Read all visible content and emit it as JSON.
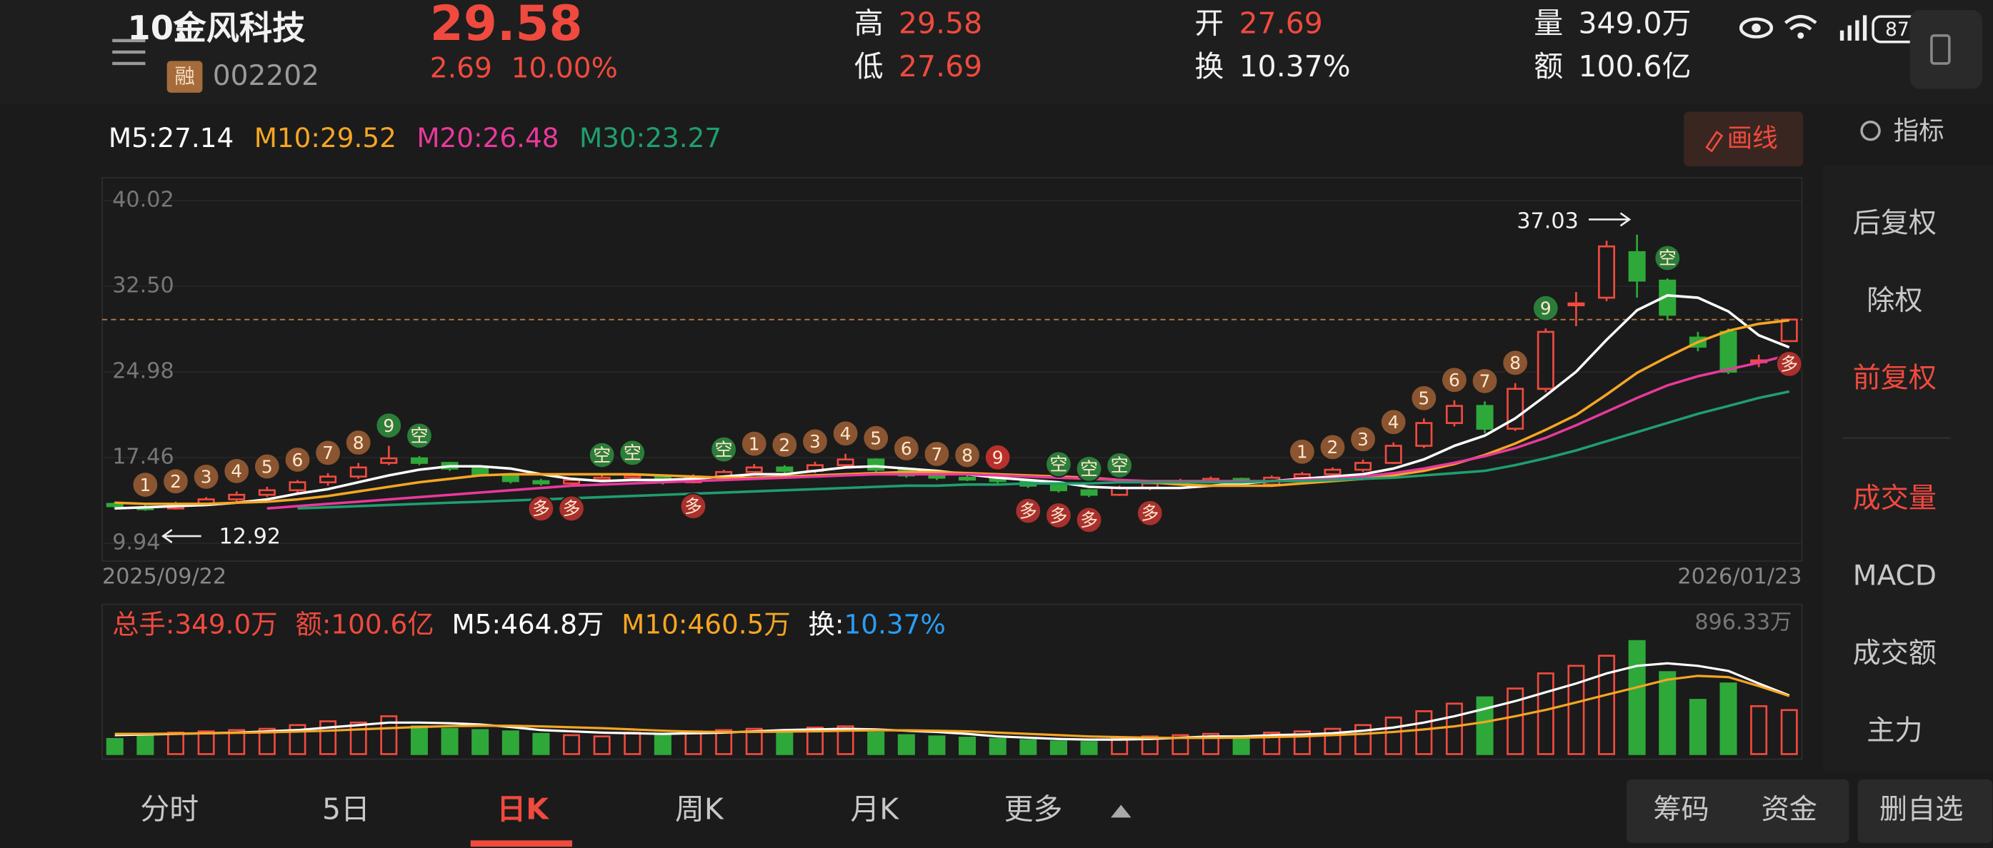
{
  "status_bar": {
    "time": "10:",
    "battery": "87"
  },
  "header": {
    "name": "金风科技",
    "badge": "融",
    "code": "002202",
    "price": "29.58",
    "change": "2.69",
    "change_pct": "10.00%",
    "stats": [
      {
        "label": "高",
        "value": "29.58"
      },
      {
        "label": "低",
        "value": "27.69"
      },
      {
        "label": "开",
        "value": "27.69"
      },
      {
        "label": "换",
        "value": "10.37%"
      },
      {
        "label": "量",
        "value": "349.0万"
      },
      {
        "label": "额",
        "value": "100.6亿"
      }
    ]
  },
  "draw_button": "画线",
  "indicator_button": "指标",
  "side_menu": [
    "后复权",
    "除权",
    "前复权",
    "成交量",
    "MACD",
    "成交额",
    "主力"
  ],
  "tabs": [
    "分时",
    "5日",
    "日K",
    "周K",
    "月K",
    "更多"
  ],
  "actions": [
    "筹码",
    "资金",
    "删自选"
  ],
  "chart_data": [
    {
      "type": "candlestick",
      "up_color": "#f04a3e",
      "down_color": "#2fa83a",
      "grid": true,
      "ylim": [
        8.38,
        42.03
      ],
      "yticks": [
        40.02,
        {
          "value": 32.5,
          "label": "32.50"
        },
        24.98,
        17.46,
        9.94
      ],
      "x_labels": [
        "2025/09/22",
        "2026/01/23"
      ],
      "price_line": 29.58,
      "price_line_color": "#b97a45",
      "max_label": 37.03,
      "min_label": 12.92,
      "open": [
        13.4,
        13.1,
        13.0,
        13.4,
        13.8,
        14.2,
        14.6,
        15.3,
        15.8,
        17.0,
        17.4,
        17.0,
        16.5,
        16.0,
        15.4,
        15.2,
        15.5,
        15.7,
        15.9,
        15.3,
        15.8,
        16.2,
        16.6,
        16.3,
        16.8,
        17.3,
        16.4,
        15.9,
        15.7,
        15.6,
        15.4,
        15.0,
        14.6,
        14.2,
        14.8,
        15.2,
        15.4,
        15.6,
        15.1,
        15.7,
        16.0,
        16.4,
        17.0,
        18.5,
        20.5,
        22.0,
        20.0,
        23.5,
        31.0,
        31.5,
        35.5,
        33.0,
        28.0,
        28.5,
        26.0,
        27.69
      ],
      "close": [
        13.2,
        13.0,
        13.4,
        13.8,
        14.2,
        14.6,
        15.3,
        15.8,
        16.6,
        17.4,
        17.0,
        16.5,
        16.0,
        15.4,
        15.2,
        15.5,
        15.7,
        15.9,
        15.3,
        15.8,
        16.2,
        16.6,
        16.3,
        16.8,
        17.3,
        16.4,
        15.9,
        15.7,
        15.6,
        15.4,
        15.0,
        14.6,
        14.2,
        14.8,
        15.2,
        15.4,
        15.6,
        15.1,
        15.7,
        16.0,
        16.4,
        17.0,
        18.5,
        20.5,
        22.0,
        20.0,
        23.5,
        28.5,
        31.0,
        36.0,
        33.0,
        30.0,
        27.2,
        25.0,
        26.0,
        29.58
      ],
      "high": [
        13.6,
        13.3,
        13.6,
        14.0,
        14.5,
        14.9,
        15.5,
        16.1,
        17.0,
        18.5,
        17.6,
        17.1,
        16.6,
        16.1,
        15.6,
        15.7,
        15.9,
        16.1,
        16.0,
        16.0,
        16.4,
        16.9,
        16.8,
        17.1,
        17.8,
        17.4,
        16.5,
        16.0,
        15.9,
        15.7,
        15.5,
        15.1,
        14.7,
        15.0,
        15.4,
        15.6,
        15.8,
        15.7,
        15.9,
        16.2,
        16.6,
        17.3,
        18.8,
        20.9,
        22.5,
        22.4,
        24.0,
        28.8,
        32.0,
        36.5,
        37.03,
        33.2,
        28.5,
        28.8,
        26.5,
        29.58
      ],
      "low": [
        12.92,
        12.8,
        12.9,
        13.2,
        13.6,
        14.0,
        14.4,
        15.0,
        15.6,
        16.8,
        16.8,
        16.3,
        15.8,
        15.2,
        15.0,
        15.0,
        15.3,
        15.5,
        15.1,
        15.2,
        15.6,
        16.0,
        16.1,
        16.1,
        16.6,
        16.2,
        15.7,
        15.5,
        15.4,
        15.2,
        14.8,
        14.4,
        14.0,
        14.1,
        14.6,
        15.0,
        15.2,
        14.9,
        15.0,
        15.5,
        15.8,
        16.2,
        16.9,
        18.3,
        20.2,
        19.6,
        19.8,
        23.2,
        29.0,
        31.2,
        31.5,
        29.5,
        26.8,
        24.8,
        25.4,
        27.69
      ],
      "series": [
        {
          "name": "M5:27.14",
          "color": "#ffffff",
          "values": [
            13.0,
            13.1,
            13.2,
            13.3,
            13.5,
            13.8,
            14.3,
            14.7,
            15.3,
            15.9,
            16.4,
            16.7,
            16.7,
            16.5,
            16.0,
            15.6,
            15.4,
            15.5,
            15.5,
            15.6,
            15.8,
            16.0,
            16.0,
            16.3,
            16.6,
            16.7,
            16.5,
            16.3,
            16.0,
            15.7,
            15.5,
            15.3,
            14.9,
            14.8,
            14.8,
            14.8,
            15.0,
            15.2,
            15.4,
            15.6,
            15.8,
            16.0,
            16.5,
            17.3,
            18.5,
            19.4,
            20.9,
            22.9,
            25.0,
            27.8,
            30.4,
            31.7,
            31.5,
            30.3,
            28.2,
            27.14
          ]
        },
        {
          "name": "M10:29.52",
          "color": "#f5a623",
          "values": [
            13.5,
            13.4,
            13.4,
            13.4,
            13.5,
            13.6,
            13.8,
            14.1,
            14.5,
            14.9,
            15.3,
            15.6,
            15.9,
            16.0,
            16.0,
            16.0,
            16.0,
            16.0,
            15.9,
            15.8,
            15.7,
            15.7,
            15.8,
            15.9,
            16.0,
            16.1,
            16.2,
            16.2,
            16.1,
            16.0,
            15.9,
            15.8,
            15.7,
            15.5,
            15.3,
            15.1,
            15.0,
            15.0,
            15.0,
            15.2,
            15.4,
            15.6,
            15.9,
            16.3,
            16.9,
            17.7,
            18.7,
            19.9,
            21.2,
            23.0,
            24.9,
            26.3,
            27.6,
            28.6,
            29.2,
            29.52
          ]
        },
        {
          "name": "M20:26.48",
          "color": "#e8399c",
          "values": [
            null,
            null,
            null,
            null,
            null,
            13.0,
            13.2,
            13.4,
            13.6,
            13.8,
            14.0,
            14.2,
            14.4,
            14.6,
            14.8,
            15.0,
            15.1,
            15.2,
            15.3,
            15.4,
            15.5,
            15.6,
            15.7,
            15.8,
            15.9,
            16.0,
            16.0,
            16.0,
            16.0,
            15.9,
            15.8,
            15.7,
            15.6,
            15.5,
            15.4,
            15.4,
            15.4,
            15.4,
            15.4,
            15.5,
            15.6,
            15.8,
            16.1,
            16.5,
            17.0,
            17.6,
            18.3,
            19.2,
            20.3,
            21.5,
            22.7,
            23.8,
            24.6,
            25.2,
            25.8,
            26.48
          ]
        },
        {
          "name": "M30:23.27",
          "color": "#1f9e6e",
          "values": [
            null,
            null,
            null,
            null,
            null,
            null,
            13.0,
            13.1,
            13.2,
            13.3,
            13.4,
            13.5,
            13.6,
            13.7,
            13.8,
            13.9,
            14.0,
            14.1,
            14.2,
            14.3,
            14.4,
            14.5,
            14.6,
            14.7,
            14.8,
            14.9,
            15.0,
            15.0,
            15.1,
            15.1,
            15.2,
            15.2,
            15.2,
            15.3,
            15.3,
            15.3,
            15.3,
            15.3,
            15.4,
            15.4,
            15.5,
            15.6,
            15.7,
            15.9,
            16.1,
            16.3,
            16.8,
            17.4,
            18.1,
            18.9,
            19.7,
            20.5,
            21.3,
            22.0,
            22.7,
            23.27
          ]
        }
      ],
      "markers": [
        {
          "text": "1",
          "index": 1,
          "color": "#8a5530",
          "position": "above"
        },
        {
          "text": "2",
          "index": 2,
          "color": "#8a5530",
          "position": "above"
        },
        {
          "text": "3",
          "index": 3,
          "color": "#8a5530",
          "position": "above"
        },
        {
          "text": "4",
          "index": 4,
          "color": "#8a5530",
          "position": "above"
        },
        {
          "text": "5",
          "index": 5,
          "color": "#8a5530",
          "position": "above"
        },
        {
          "text": "6",
          "index": 6,
          "color": "#8a5530",
          "position": "above"
        },
        {
          "text": "7",
          "index": 7,
          "color": "#8a5530",
          "position": "above"
        },
        {
          "text": "8",
          "index": 8,
          "color": "#8a5530",
          "position": "above"
        },
        {
          "text": "9",
          "index": 9,
          "color": "#2b7d39",
          "position": "above"
        },
        {
          "text": "空",
          "index": 10,
          "color": "#2b7d39",
          "position": "above"
        },
        {
          "text": "多",
          "index": 14,
          "color": "#a8302d",
          "position": "below"
        },
        {
          "text": "多",
          "index": 15,
          "color": "#a8302d",
          "position": "below"
        },
        {
          "text": "空",
          "index": 16,
          "color": "#2b7d39",
          "position": "above"
        },
        {
          "text": "空",
          "index": 17,
          "color": "#2b7d39",
          "position": "above"
        },
        {
          "text": "多",
          "index": 19,
          "color": "#a8302d",
          "position": "below"
        },
        {
          "text": "空",
          "index": 20,
          "color": "#2b7d39",
          "position": "above"
        },
        {
          "text": "1",
          "index": 21,
          "color": "#8a5530",
          "position": "above"
        },
        {
          "text": "2",
          "index": 22,
          "color": "#8a5530",
          "position": "above"
        },
        {
          "text": "3",
          "index": 23,
          "color": "#8a5530",
          "position": "above"
        },
        {
          "text": "4",
          "index": 24,
          "color": "#8a5530",
          "position": "above"
        },
        {
          "text": "5",
          "index": 25,
          "color": "#8a5530",
          "position": "above"
        },
        {
          "text": "6",
          "index": 26,
          "color": "#8a5530",
          "position": "above"
        },
        {
          "text": "7",
          "index": 27,
          "color": "#8a5530",
          "position": "above"
        },
        {
          "text": "8",
          "index": 28,
          "color": "#8a5530",
          "position": "above"
        },
        {
          "text": "9",
          "index": 29,
          "color": "#b8302c",
          "position": "above"
        },
        {
          "text": "多",
          "index": 30,
          "color": "#a8302d",
          "position": "below"
        },
        {
          "text": "空",
          "index": 31,
          "color": "#2b7d39",
          "position": "above"
        },
        {
          "text": "多",
          "index": 31,
          "color": "#a8302d",
          "position": "below"
        },
        {
          "text": "空",
          "index": 32,
          "color": "#2b7d39",
          "position": "above"
        },
        {
          "text": "多",
          "index": 32,
          "color": "#a8302d",
          "position": "below"
        },
        {
          "text": "空",
          "index": 33,
          "color": "#2b7d39",
          "position": "above"
        },
        {
          "text": "多",
          "index": 34,
          "color": "#a8302d",
          "position": "below"
        },
        {
          "text": "1",
          "index": 39,
          "color": "#8a5530",
          "position": "above"
        },
        {
          "text": "2",
          "index": 40,
          "color": "#8a5530",
          "position": "above"
        },
        {
          "text": "3",
          "index": 41,
          "color": "#8a5530",
          "position": "above"
        },
        {
          "text": "4",
          "index": 42,
          "color": "#8a5530",
          "position": "above"
        },
        {
          "text": "5",
          "index": 43,
          "color": "#8a5530",
          "position": "above"
        },
        {
          "text": "6",
          "index": 44,
          "color": "#8a5530",
          "position": "above"
        },
        {
          "text": "7",
          "index": 45,
          "color": "#8a5530",
          "position": "above"
        },
        {
          "text": "8",
          "index": 46,
          "color": "#8a5530",
          "position": "above"
        },
        {
          "text": "9",
          "index": 47,
          "color": "#2b7d39",
          "position": "above"
        },
        {
          "text": "空",
          "index": 51,
          "color": "#2b7d39",
          "position": "above"
        },
        {
          "text": "多",
          "index": 55,
          "color": "#a8302d",
          "position": "below"
        }
      ]
    },
    {
      "type": "volume",
      "ylim": [
        0,
        896.33
      ],
      "yticks": [
        {
          "value": 896.33,
          "label": "896.33万"
        }
      ],
      "grid": false,
      "values": [
        120,
        150,
        170,
        180,
        190,
        200,
        230,
        260,
        250,
        300,
        220,
        200,
        190,
        180,
        160,
        150,
        140,
        170,
        160,
        180,
        190,
        200,
        180,
        210,
        220,
        170,
        150,
        140,
        130,
        120,
        110,
        100,
        95,
        130,
        140,
        150,
        160,
        120,
        170,
        180,
        200,
        230,
        290,
        340,
        400,
        450,
        520,
        640,
        700,
        780,
        896.33,
        650,
        430,
        560,
        380,
        349.0
      ],
      "info": [
        {
          "text": "总手:349.0万",
          "color": "#f04a3e"
        },
        {
          "text": "额:100.6亿",
          "color": "#f04a3e"
        }
      ],
      "series": [
        {
          "name": "M5:464.8万",
          "color": "#ffffff",
          "values": [
            150,
            155,
            160,
            165,
            170,
            180,
            190,
            210,
            230,
            250,
            250,
            245,
            235,
            215,
            190,
            180,
            170,
            165,
            160,
            165,
            170,
            180,
            190,
            195,
            200,
            195,
            185,
            175,
            160,
            140,
            130,
            120,
            115,
            115,
            120,
            130,
            140,
            140,
            150,
            155,
            165,
            185,
            210,
            250,
            300,
            360,
            420,
            490,
            560,
            640,
            700,
            720,
            700,
            660,
            560,
            464.8
          ]
        },
        {
          "name": "M10:460.5万",
          "color": "#f5a623",
          "values": [
            160,
            160,
            162,
            165,
            168,
            172,
            178,
            185,
            195,
            205,
            215,
            222,
            225,
            225,
            220,
            212,
            205,
            195,
            185,
            178,
            175,
            175,
            178,
            180,
            185,
            188,
            188,
            185,
            180,
            170,
            160,
            150,
            140,
            135,
            130,
            128,
            128,
            130,
            135,
            140,
            150,
            160,
            175,
            195,
            220,
            255,
            300,
            350,
            410,
            470,
            530,
            590,
            620,
            610,
            540,
            460.5
          ]
        }
      ],
      "turnover": {
        "label": "换:",
        "value": "10.37%",
        "label_color": "#ffffff",
        "value_color": "#2a9df4"
      }
    }
  ]
}
